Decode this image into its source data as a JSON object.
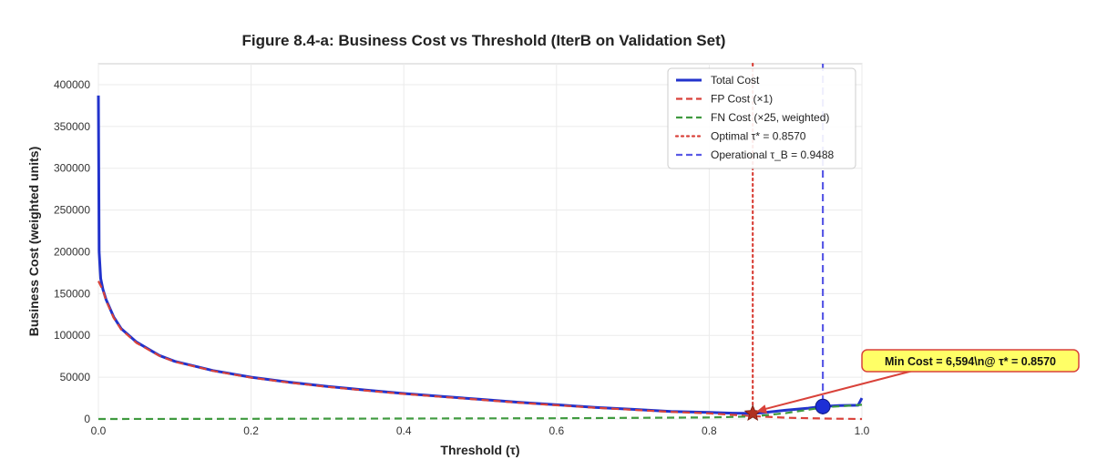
{
  "chart_data": {
    "type": "line",
    "title": "Figure 8.4-a: Business Cost vs Threshold (IterB on Validation Set)",
    "xlabel": "Threshold (τ)",
    "ylabel": "Business Cost (weighted units)",
    "xlim": [
      0.0,
      1.0
    ],
    "ylim": [
      0,
      425000
    ],
    "xticks": [
      0.0,
      0.2,
      0.4,
      0.6,
      0.8,
      1.0
    ],
    "xtick_labels": [
      "0.0",
      "0.2",
      "0.4",
      "0.6",
      "0.8",
      "1.0"
    ],
    "yticks": [
      0,
      50000,
      100000,
      150000,
      200000,
      250000,
      300000,
      350000,
      400000
    ],
    "ytick_labels": [
      "0",
      "50000",
      "100000",
      "150000",
      "200000",
      "250000",
      "300000",
      "350000",
      "400000"
    ],
    "grid": true,
    "legend_position": "top-right",
    "colors": {
      "total": "#2233cc",
      "fp": "#d9423a",
      "fn": "#3f9a3f",
      "optimal": "#d9423a",
      "operational": "#5a5ae6",
      "annotation_bg": "#ffff66",
      "annotation_border": "#d9423a"
    },
    "series": [
      {
        "name": "Total Cost",
        "x": [
          0.0,
          0.001,
          0.003,
          0.006,
          0.01,
          0.02,
          0.03,
          0.05,
          0.08,
          0.1,
          0.15,
          0.2,
          0.25,
          0.3,
          0.35,
          0.4,
          0.45,
          0.5,
          0.55,
          0.6,
          0.65,
          0.7,
          0.75,
          0.8,
          0.83,
          0.857,
          0.87,
          0.9,
          0.93,
          0.9488,
          0.97,
          0.995,
          1.0
        ],
        "y": [
          387000,
          200000,
          168000,
          155000,
          143000,
          122000,
          108000,
          92000,
          76000,
          69000,
          58000,
          50000,
          44000,
          39000,
          34500,
          30500,
          27000,
          23500,
          20000,
          17000,
          14000,
          11500,
          9000,
          7800,
          7000,
          6594,
          7500,
          10500,
          13000,
          15000,
          16000,
          16500,
          25000
        ]
      },
      {
        "name": "FP Cost (×1)",
        "x": [
          0.0,
          0.006,
          0.01,
          0.02,
          0.03,
          0.05,
          0.08,
          0.1,
          0.15,
          0.2,
          0.25,
          0.3,
          0.35,
          0.4,
          0.45,
          0.5,
          0.55,
          0.6,
          0.65,
          0.7,
          0.75,
          0.8,
          0.83,
          0.857,
          0.9,
          0.95,
          1.0
        ],
        "y": [
          165000,
          154000,
          142000,
          121000,
          107000,
          91000,
          75500,
          68500,
          57500,
          49500,
          43500,
          38500,
          34000,
          30000,
          26500,
          23000,
          19500,
          16500,
          13500,
          11000,
          8500,
          6800,
          5000,
          3500,
          1500,
          500,
          0
        ]
      },
      {
        "name": "FN Cost (×25, weighted)",
        "x": [
          0.0,
          0.2,
          0.4,
          0.6,
          0.8,
          0.857,
          0.9,
          0.95,
          1.0
        ],
        "y": [
          0,
          200,
          500,
          900,
          1800,
          3100,
          7000,
          14000,
          17000
        ]
      }
    ],
    "vlines": [
      {
        "name": "Optimal τ* = 0.8570",
        "x": 0.857,
        "style": "dotted"
      },
      {
        "name": "Operational τ_B = 0.9488",
        "x": 0.9488,
        "style": "dashed"
      }
    ],
    "markers": [
      {
        "kind": "star",
        "x": 0.857,
        "y": 6594
      },
      {
        "kind": "circle",
        "x": 0.9488,
        "y": 15000
      }
    ],
    "annotation": {
      "text": "Min Cost = 6,594\\n@ τ* = 0.8570",
      "points_to": {
        "x": 0.857,
        "y": 6594
      }
    },
    "legend_labels": [
      "Total Cost",
      "FP Cost (×1)",
      "FN Cost (×25, weighted)",
      "Optimal τ* = 0.8570",
      "Operational τ_B = 0.9488"
    ]
  }
}
